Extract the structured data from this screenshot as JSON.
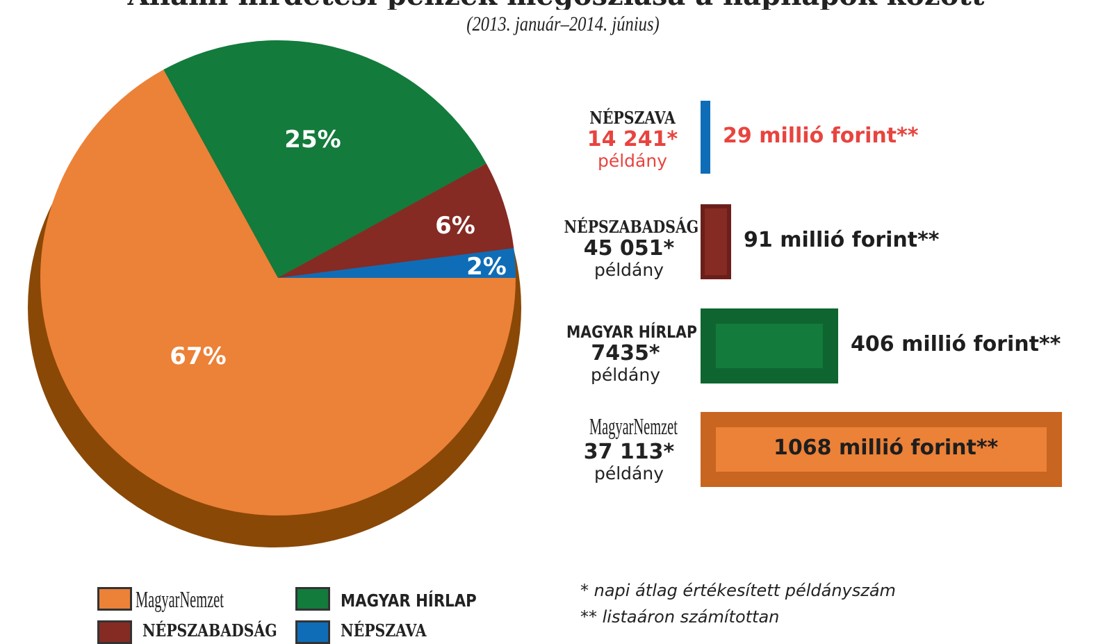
{
  "header": {
    "title": "Állami hirdetési pénzek megoszlása a napilapok között",
    "subtitle": "(2013. január–2014. június)"
  },
  "chart_data": [
    {
      "type": "pie",
      "slices": [
        {
          "label": "MagyarNemzet",
          "value": 67,
          "value_label": "67%",
          "color": "#ec8138"
        },
        {
          "label": "MAGYAR HÍRLAP",
          "value": 25,
          "value_label": "25%",
          "color": "#137b3c"
        },
        {
          "label": "NÉPSZABADSÁG",
          "value": 6,
          "value_label": "6%",
          "color": "#862a24"
        },
        {
          "label": "NÉPSZAVA",
          "value": 2,
          "value_label": "2%",
          "color": "#0f6db7"
        }
      ]
    },
    {
      "type": "bar",
      "orientation": "horizontal",
      "categories": [
        "NÉPSZAVA",
        "NÉPSZABADSÁG",
        "MAGYAR HÍRLAP",
        "MagyarNemzet"
      ],
      "values": [
        29,
        91,
        406,
        1068
      ],
      "value_labels": [
        "29 millió forint**",
        "91 millió forint**",
        "406 millió forint**",
        "1068 millió forint**"
      ],
      "copies": [
        "14 241*",
        "45 051*",
        "7435*",
        "37 113*"
      ],
      "copies_unit": "példány",
      "colors": [
        "#0f6db7",
        "#862a24",
        "#137b3c",
        "#ec8138"
      ]
    }
  ],
  "legend": [
    {
      "label": "MagyarNemzet",
      "color": "#ec8138"
    },
    {
      "label": "MAGYAR HÍRLAP",
      "color": "#137b3c"
    },
    {
      "label": "NÉPSZABADSÁG",
      "color": "#862a24"
    },
    {
      "label": "NÉPSZAVA",
      "color": "#0f6db7"
    }
  ],
  "notes": {
    "note1": "* napi átlag értékesített példányszám",
    "note2": "** listaáron számítottan"
  }
}
